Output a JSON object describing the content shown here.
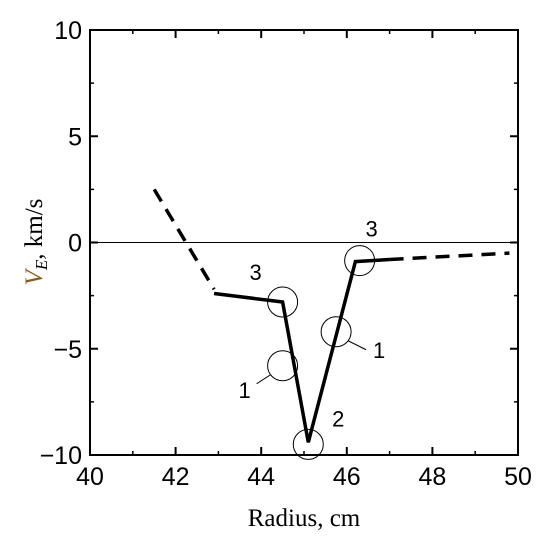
{
  "chart_data": {
    "type": "line",
    "xlabel": "Radius, cm",
    "ylabel_main": "V",
    "ylabel_sub": "E",
    "ylabel_unit": ", km/s",
    "xlim": [
      40,
      50
    ],
    "ylim": [
      -10,
      10
    ],
    "x_ticks": [
      40,
      42,
      44,
      46,
      48,
      50
    ],
    "y_ticks": [
      -10,
      -5,
      0,
      5,
      10
    ],
    "x_tick_labels": [
      "40",
      "42",
      "44",
      "46",
      "48",
      "50"
    ],
    "y_tick_labels": [
      "−10",
      "−5",
      "0",
      "5",
      "10"
    ],
    "grid": false,
    "zero_line": true,
    "series": [
      {
        "style": "dashed",
        "x": [
          41.5,
          42.9
        ],
        "y": [
          2.5,
          -2.2
        ]
      },
      {
        "style": "solid",
        "x": [
          42.9,
          44.5,
          45.1,
          46.2,
          47.0
        ],
        "y": [
          -2.4,
          -2.8,
          -9.4,
          -0.9,
          -0.8
        ]
      },
      {
        "style": "dashed",
        "x": [
          47.0,
          49.8
        ],
        "y": [
          -0.8,
          -0.5
        ]
      }
    ],
    "markers": [
      {
        "x": 44.5,
        "y": -5.8,
        "label": "1",
        "label_side": "left"
      },
      {
        "x": 45.75,
        "y": -4.2,
        "label": "1",
        "label_side": "right"
      },
      {
        "x": 44.5,
        "y": -2.8,
        "label": "3",
        "label_side": "top-left"
      },
      {
        "x": 46.3,
        "y": -0.85,
        "label": "3",
        "label_side": "top"
      },
      {
        "x": 45.1,
        "y": -9.5,
        "label": "2",
        "label_side": "top-right"
      }
    ]
  }
}
